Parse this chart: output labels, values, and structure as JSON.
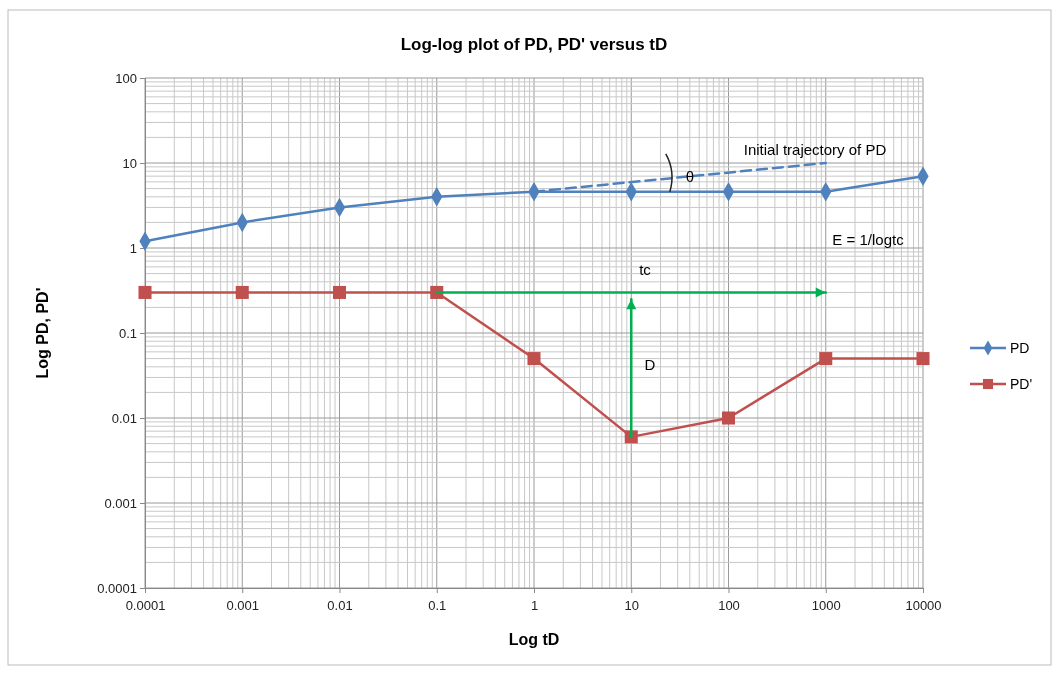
{
  "chart_data": {
    "type": "line",
    "title": "Log-log plot of PD, PD' versus tD",
    "xlabel": "Log tD",
    "ylabel": "Log PD, PD'",
    "log": "xy",
    "grid": true,
    "legend": "right",
    "xlim": [
      0.0001,
      10000
    ],
    "xticks": [
      {
        "value": 0.0001,
        "label": "0.0001"
      },
      {
        "value": 0.001,
        "label": "0.001"
      },
      {
        "value": 0.01,
        "label": "0.01"
      },
      {
        "value": 0.1,
        "label": "0.1"
      },
      1,
      10,
      100,
      1000,
      10000
    ],
    "ylim": [
      0.0001,
      100
    ],
    "yticks": [
      {
        "value": 0.0001,
        "label": "0.0001"
      },
      {
        "value": 0.001,
        "label": "0.001"
      },
      {
        "value": 0.01,
        "label": "0.01"
      },
      {
        "value": 0.1,
        "label": "0.1"
      },
      1,
      10,
      100
    ],
    "x": [
      0.0001,
      0.001,
      0.01,
      0.1,
      1,
      10,
      100,
      1000,
      10000
    ],
    "series": [
      {
        "name": "PD",
        "color": "#4f81bd",
        "marker": "diamond",
        "values": [
          1.2,
          2,
          3,
          4,
          4.6,
          4.6,
          4.6,
          4.6,
          7
        ]
      },
      {
        "name": "PD'",
        "color": "#c0504d",
        "marker": "square",
        "values": [
          0.3,
          0.3,
          0.3,
          0.3,
          0.05,
          0.006,
          0.01,
          0.05,
          0.05
        ]
      },
      {
        "color": "#4f81bd",
        "marker": "none",
        "line_style": "dashed",
        "x": [
          1,
          1000
        ],
        "values": [
          4.6,
          10
        ]
      },
      {
        "color": "#00b050",
        "marker": "none",
        "x": [
          0.1,
          1000
        ],
        "values": [
          0.3,
          0.3
        ]
      },
      {
        "color": "#00b050",
        "marker": "none",
        "x": [
          10,
          10
        ],
        "values": [
          0.006,
          0.25
        ]
      }
    ],
    "annotations": [
      "Initial  trajectory of PD",
      {
        "text": "θ",
        "x": 40,
        "y": 6
      },
      "E = 1/logtc",
      "tc",
      "D"
    ]
  }
}
